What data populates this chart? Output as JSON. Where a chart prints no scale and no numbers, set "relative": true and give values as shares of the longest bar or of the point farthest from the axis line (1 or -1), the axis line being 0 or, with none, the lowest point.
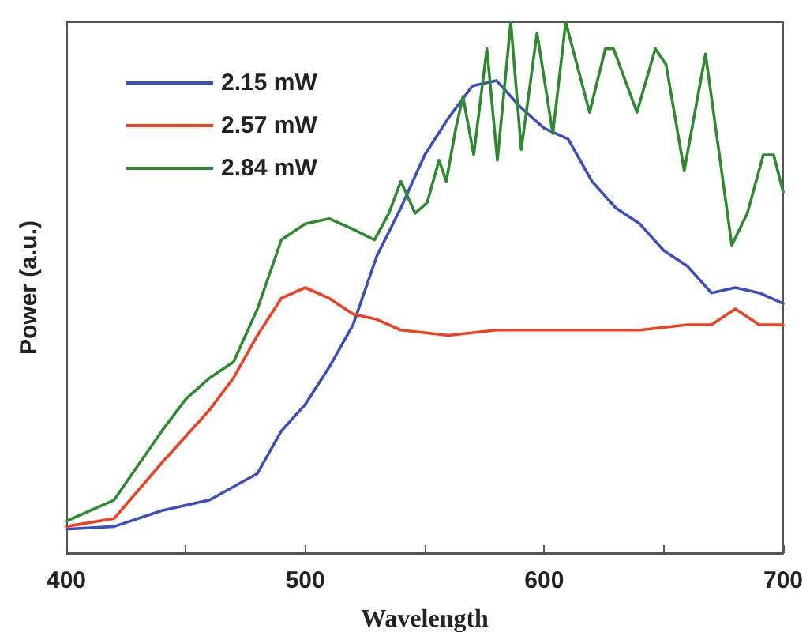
{
  "chart_data": {
    "type": "line",
    "relative": true,
    "xlabel": "Wavelength",
    "ylabel": "Power (a.u.)",
    "xlim": [
      400,
      700
    ],
    "xticks": [
      400,
      {
        "value": 450,
        "label": null
      },
      500,
      {
        "value": 550,
        "label": null
      },
      600,
      {
        "value": 650,
        "label": null
      },
      700
    ],
    "grid": false,
    "legend": "top left",
    "marker": "none",
    "line_style": "solid",
    "series": [
      {
        "name": "2.15 mW",
        "color": "#3a4fc0",
        "x": [
          400,
          420,
          440,
          460,
          480,
          490,
          500,
          510,
          520,
          530,
          540,
          550,
          560,
          570,
          580,
          590,
          600,
          610,
          620,
          630,
          640,
          650,
          660,
          670,
          680,
          690,
          700
        ],
        "values": [
          0.045,
          0.05,
          0.08,
          0.1,
          0.15,
          0.23,
          0.28,
          0.35,
          0.43,
          0.56,
          0.65,
          0.75,
          0.82,
          0.88,
          0.89,
          0.84,
          0.8,
          0.78,
          0.7,
          0.65,
          0.62,
          0.57,
          0.54,
          0.49,
          0.5,
          0.49,
          0.47
        ]
      },
      {
        "name": "2.57 mW",
        "color": "#f04020",
        "x": [
          400,
          420,
          440,
          460,
          470,
          480,
          490,
          500,
          510,
          520,
          530,
          540,
          560,
          580,
          600,
          620,
          640,
          660,
          670,
          680,
          690,
          700
        ],
        "values": [
          0.05,
          0.065,
          0.17,
          0.27,
          0.33,
          0.41,
          0.48,
          0.5,
          0.48,
          0.45,
          0.44,
          0.42,
          0.41,
          0.42,
          0.42,
          0.42,
          0.42,
          0.43,
          0.43,
          0.46,
          0.43,
          0.43
        ]
      },
      {
        "name": "2.84 mW",
        "color": "#2e8a2e",
        "x": [
          400,
          420,
          440,
          450,
          460,
          470,
          480,
          490,
          500,
          510,
          520,
          529,
          535,
          540,
          546,
          551,
          556,
          559,
          563,
          566,
          570.5,
          576,
          580.4,
          586,
          590.4,
          597,
          603.6,
          609,
          619,
          625.6,
          629,
          638.8,
          646.5,
          651,
          658.6,
          667.5,
          678.5,
          685,
          691.7,
          696,
          700
        ],
        "values": [
          0.06,
          0.1,
          0.23,
          0.29,
          0.33,
          0.36,
          0.46,
          0.59,
          0.62,
          0.63,
          0.61,
          0.59,
          0.64,
          0.7,
          0.64,
          0.66,
          0.74,
          0.7,
          0.8,
          0.86,
          0.75,
          0.95,
          0.74,
          1.0,
          0.76,
          0.98,
          0.79,
          1.0,
          0.83,
          0.95,
          0.95,
          0.83,
          0.95,
          0.92,
          0.72,
          0.94,
          0.58,
          0.64,
          0.75,
          0.75,
          0.68
        ]
      }
    ]
  }
}
